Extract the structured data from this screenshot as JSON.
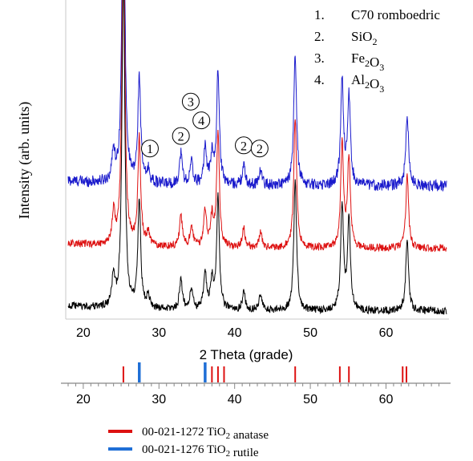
{
  "chart_data": {
    "type": "line",
    "xlabel": "2 Theta (grade)",
    "ylabel": "Intensity (arb. units)",
    "xlim": [
      18,
      68
    ],
    "x_ticks": [
      20,
      30,
      40,
      50,
      60
    ],
    "tick_labels": [
      "20",
      "30",
      "40",
      "50",
      "60"
    ],
    "series": [
      {
        "color": "#1a1acc",
        "offset": 2,
        "noise": 0.09
      },
      {
        "color": "#dd1111",
        "offset": 1,
        "noise": 0.06
      },
      {
        "color": "#000000",
        "offset": 0,
        "noise": 0.06
      }
    ],
    "peaks": [
      {
        "x": 24.0,
        "h": 0.5
      },
      {
        "x": 25.3,
        "h": 5.5
      },
      {
        "x": 27.4,
        "h": 1.7
      },
      {
        "x": 28.6,
        "h": 0.2
      },
      {
        "x": 32.9,
        "h": 0.5
      },
      {
        "x": 34.3,
        "h": 0.35
      },
      {
        "x": 36.1,
        "h": 0.6
      },
      {
        "x": 37.0,
        "h": 0.45
      },
      {
        "x": 37.8,
        "h": 1.8
      },
      {
        "x": 41.2,
        "h": 0.3
      },
      {
        "x": 43.4,
        "h": 0.25
      },
      {
        "x": 48.0,
        "h": 2.1
      },
      {
        "x": 54.2,
        "h": 1.7
      },
      {
        "x": 55.1,
        "h": 1.45
      },
      {
        "x": 62.8,
        "h": 1.15
      }
    ],
    "annotations": [
      {
        "label": "1",
        "x": 28.8,
        "y": 2.6
      },
      {
        "label": "2",
        "x": 32.9,
        "y": 2.8
      },
      {
        "label": "3",
        "x": 34.2,
        "y": 3.35
      },
      {
        "label": "4",
        "x": 35.6,
        "y": 3.05
      },
      {
        "label": "2",
        "x": 41.2,
        "y": 2.65
      },
      {
        "label": "2",
        "x": 43.3,
        "y": 2.6
      }
    ],
    "legend_items": [
      {
        "num": "1.",
        "parts": [
          {
            "t": "C70 romboedric"
          }
        ]
      },
      {
        "num": "2.",
        "parts": [
          {
            "t": "SiO"
          },
          {
            "t": "2",
            "sub": true
          }
        ]
      },
      {
        "num": "3.",
        "parts": [
          {
            "t": "Fe"
          },
          {
            "t": "2",
            "sub": true
          },
          {
            "t": "O"
          },
          {
            "t": "3",
            "sub": true
          }
        ]
      },
      {
        "num": "4.",
        "parts": [
          {
            "t": "Al"
          },
          {
            "t": "2",
            "sub": true
          },
          {
            "t": "O"
          },
          {
            "t": "3",
            "sub": true
          }
        ]
      }
    ],
    "references": [
      {
        "label_parts": [
          {
            "t": "00-021-1272 TiO"
          },
          {
            "t": "2",
            "sub": true
          },
          {
            "t": " anatase"
          }
        ],
        "color": "#dd1111",
        "lines": [
          25.3,
          37.0,
          37.8,
          38.6,
          48.0,
          53.9,
          55.1,
          62.2,
          62.7
        ]
      },
      {
        "label_parts": [
          {
            "t": "00-021-1276 TiO"
          },
          {
            "t": "2",
            "sub": true
          },
          {
            "t": " rutile"
          }
        ],
        "color": "#1f6fd6",
        "lines": [
          27.4,
          36.1
        ]
      }
    ]
  }
}
